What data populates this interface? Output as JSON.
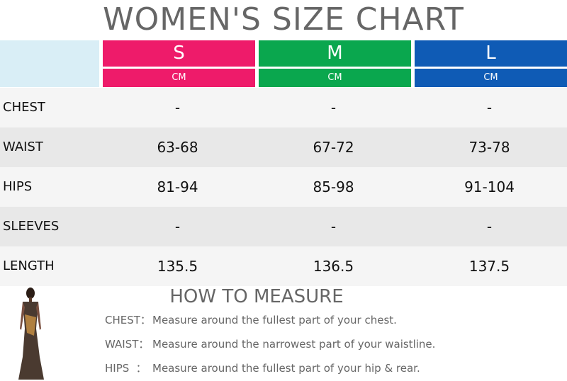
{
  "title": "WOMEN'S SIZE CHART",
  "table": {
    "sizes": [
      {
        "name": "S",
        "unit": "CM"
      },
      {
        "name": "M",
        "unit": "CM"
      },
      {
        "name": "L",
        "unit": "CM"
      }
    ],
    "rows": [
      {
        "label": "CHEST",
        "values": [
          "-",
          "-",
          "-"
        ]
      },
      {
        "label": "WAIST",
        "values": [
          "63-68",
          "67-72",
          "73-78"
        ]
      },
      {
        "label": "HIPS",
        "values": [
          "81-94",
          "85-98",
          "91-104"
        ]
      },
      {
        "label": "SLEEVES",
        "values": [
          "-",
          "-",
          "-"
        ]
      },
      {
        "label": "LENGTH",
        "values": [
          "135.5",
          "136.5",
          "137.5"
        ]
      }
    ]
  },
  "measure": {
    "title": "HOW TO MEASURE",
    "items": [
      {
        "label": "CHEST：",
        "text": "Measure around the fullest part of your chest."
      },
      {
        "label": "WAIST：",
        "text": "Measure around the narrowest part of your waistline."
      },
      {
        "label": "HIPS  ：",
        "text": "Measure around the fullest part of your hip & rear."
      }
    ]
  }
}
